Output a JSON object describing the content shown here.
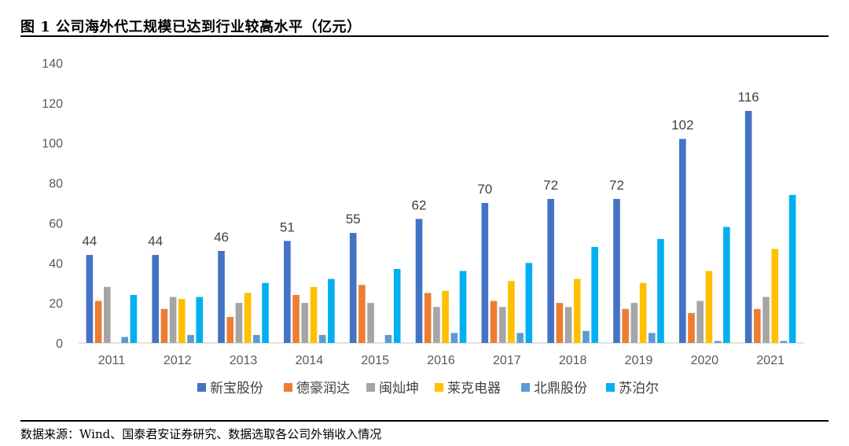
{
  "figure": {
    "title": "图 1 公司海外代工规模已达到行业较高水平（亿元）",
    "source": "数据来源：Wind、国泰君安证券研究、数据选取各公司外销收入情况"
  },
  "chart_data": {
    "type": "bar",
    "categories": [
      "2011",
      "2012",
      "2013",
      "2014",
      "2015",
      "2016",
      "2017",
      "2018",
      "2019",
      "2020",
      "2021"
    ],
    "ylim": [
      0,
      140
    ],
    "yticks": [
      0,
      20,
      40,
      60,
      80,
      100,
      120,
      140
    ],
    "grid": false,
    "legend_position": "bottom",
    "series": [
      {
        "name": "新宝股份",
        "color": "#4472C4",
        "values": [
          44,
          44,
          46,
          51,
          55,
          62,
          70,
          72,
          72,
          102,
          116
        ]
      },
      {
        "name": "德豪润达",
        "color": "#ED7D31",
        "values": [
          21,
          17,
          13,
          24,
          29,
          25,
          21,
          20,
          17,
          15,
          17
        ]
      },
      {
        "name": "闽灿坤",
        "color": "#A5A5A5",
        "values": [
          28,
          23,
          20,
          20,
          20,
          18,
          18,
          18,
          20,
          21,
          23
        ]
      },
      {
        "name": "莱克电器",
        "color": "#FFC000",
        "values": [
          null,
          22,
          25,
          28,
          null,
          26,
          31,
          32,
          30,
          36,
          47
        ]
      },
      {
        "name": "北鼎股份",
        "color": "#5B9BD5",
        "values": [
          3,
          4,
          4,
          4,
          4,
          5,
          5,
          6,
          5,
          1,
          1
        ]
      },
      {
        "name": "苏泊尔",
        "color": "#00B0F0",
        "values": [
          24,
          23,
          30,
          32,
          37,
          36,
          40,
          48,
          52,
          58,
          74
        ]
      }
    ],
    "data_labels": {
      "series": "新宝股份",
      "values": [
        "44",
        "44",
        "46",
        "51",
        "55",
        "62",
        "70",
        "72",
        "72",
        "102",
        "116"
      ]
    }
  }
}
